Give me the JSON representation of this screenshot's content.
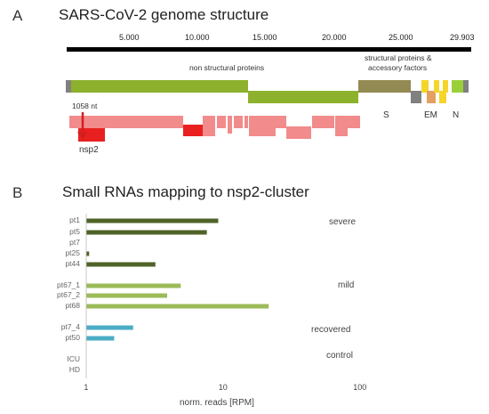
{
  "panelA": {
    "letter": "A",
    "title": "SARS-CoV-2 genome structure",
    "ticks": [
      "5.000",
      "10.000",
      "15.000",
      "20.000",
      "25.000",
      "29.903"
    ],
    "nsp_label": "non structural proteins",
    "structural_label_1": "structural proteins &",
    "structural_label_2": "accessory factors",
    "nt_label": "1058 nt",
    "nsp2_label": "nsp2",
    "S": "S",
    "EM": "EM",
    "N": "N"
  },
  "panelB": {
    "letter": "B",
    "title": "Small RNAs mapping to nsp2-cluster",
    "groups": [
      "severe",
      "mild",
      "recovered",
      "control"
    ],
    "xlabel": "norm. reads [RPM]",
    "xticks": [
      "1",
      "10",
      "100"
    ]
  },
  "chart_data": {
    "type": "bar",
    "orientation": "horizontal",
    "xscale": "log",
    "xlim": [
      1,
      100
    ],
    "xlabel": "norm. reads [RPM]",
    "categories": [
      "pt1",
      "pt5",
      "pt7",
      "pt25",
      "pt44",
      "pt67_1",
      "pt67_2",
      "pt68",
      "pt7_4",
      "pt50",
      "ICU",
      "HD"
    ],
    "values": [
      9.2,
      7.6,
      1.0,
      1.05,
      3.2,
      4.9,
      3.9,
      21.5,
      2.2,
      1.6,
      1.0,
      1.0
    ],
    "colors": [
      "#4f6228",
      "#4f6228",
      "#4f6228",
      "#4f6228",
      "#4f6228",
      "#9bbb59",
      "#9bbb59",
      "#9bbb59",
      "#4bacc6",
      "#4bacc6",
      "#4bacc6",
      "#4bacc6"
    ],
    "groups": [
      {
        "name": "severe",
        "members": [
          "pt1",
          "pt5",
          "pt7",
          "pt25",
          "pt44"
        ]
      },
      {
        "name": "mild",
        "members": [
          "pt67_1",
          "pt67_2",
          "pt68"
        ]
      },
      {
        "name": "recovered",
        "members": [
          "pt7_4",
          "pt50"
        ]
      },
      {
        "name": "control",
        "members": [
          "ICU",
          "HD"
        ]
      }
    ]
  },
  "colors": {
    "genome_bar": "#000000",
    "nsp_green": "#8db12d",
    "structural_brown": "#938953",
    "yellow": "#f5d52a",
    "orange": "#e3a060",
    "pink": "#f28b8b",
    "red": "#e8201f",
    "arrow": "#d41e1e"
  }
}
